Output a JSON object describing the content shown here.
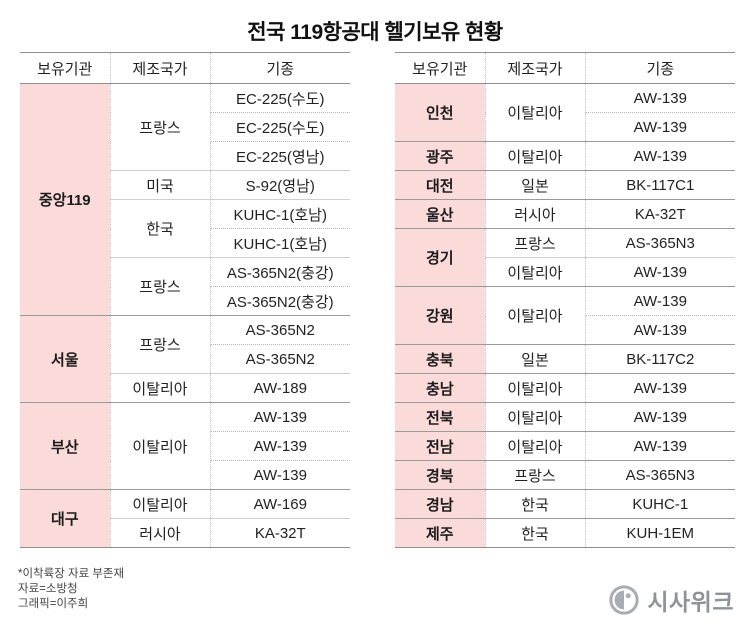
{
  "title": "전국 119항공대 헬기보유 현황",
  "chart_data": {
    "type": "table",
    "title": "전국 119항공대 헬기보유 현황",
    "headers": [
      "보유기관",
      "제조국가",
      "기종"
    ],
    "tables": [
      {
        "groups": [
          {
            "org": "중앙119",
            "countries": [
              {
                "name": "프랑스",
                "models": [
                  "EC-225(수도)",
                  "EC-225(수도)",
                  "EC-225(영남)"
                ]
              },
              {
                "name": "미국",
                "models": [
                  "S-92(영남)"
                ]
              },
              {
                "name": "한국",
                "models": [
                  "KUHC-1(호남)",
                  "KUHC-1(호남)"
                ]
              },
              {
                "name": "프랑스",
                "models": [
                  "AS-365N2(충강)",
                  "AS-365N2(충강)"
                ]
              }
            ]
          },
          {
            "org": "서울",
            "countries": [
              {
                "name": "프랑스",
                "models": [
                  "AS-365N2",
                  "AS-365N2"
                ]
              },
              {
                "name": "이탈리아",
                "models": [
                  "AW-189"
                ]
              }
            ]
          },
          {
            "org": "부산",
            "countries": [
              {
                "name": "이탈리아",
                "models": [
                  "AW-139",
                  "AW-139",
                  "AW-139"
                ]
              }
            ]
          },
          {
            "org": "대구",
            "countries": [
              {
                "name": "이탈리아",
                "models": [
                  "AW-169"
                ]
              },
              {
                "name": "러시아",
                "models": [
                  "KA-32T"
                ]
              }
            ]
          }
        ]
      },
      {
        "groups": [
          {
            "org": "인천",
            "countries": [
              {
                "name": "이탈리아",
                "models": [
                  "AW-139",
                  "AW-139"
                ]
              }
            ]
          },
          {
            "org": "광주",
            "countries": [
              {
                "name": "이탈리아",
                "models": [
                  "AW-139"
                ]
              }
            ]
          },
          {
            "org": "대전",
            "countries": [
              {
                "name": "일본",
                "models": [
                  "BK-117C1"
                ]
              }
            ]
          },
          {
            "org": "울산",
            "countries": [
              {
                "name": "러시아",
                "models": [
                  "KA-32T"
                ]
              }
            ]
          },
          {
            "org": "경기",
            "countries": [
              {
                "name": "프랑스",
                "models": [
                  "AS-365N3"
                ]
              },
              {
                "name": "이탈리아",
                "models": [
                  "AW-139"
                ]
              }
            ]
          },
          {
            "org": "강원",
            "countries": [
              {
                "name": "이탈리아",
                "models": [
                  "AW-139",
                  "AW-139"
                ]
              }
            ]
          },
          {
            "org": "충북",
            "countries": [
              {
                "name": "일본",
                "models": [
                  "BK-117C2"
                ]
              }
            ]
          },
          {
            "org": "충남",
            "countries": [
              {
                "name": "이탈리아",
                "models": [
                  "AW-139"
                ]
              }
            ]
          },
          {
            "org": "전북",
            "countries": [
              {
                "name": "이탈리아",
                "models": [
                  "AW-139"
                ]
              }
            ]
          },
          {
            "org": "전남",
            "countries": [
              {
                "name": "이탈리아",
                "models": [
                  "AW-139"
                ]
              }
            ]
          },
          {
            "org": "경북",
            "countries": [
              {
                "name": "프랑스",
                "models": [
                  "AS-365N3"
                ]
              }
            ]
          },
          {
            "org": "경남",
            "countries": [
              {
                "name": "한국",
                "models": [
                  "KUHC-1"
                ]
              }
            ]
          },
          {
            "org": "제주",
            "countries": [
              {
                "name": "한국",
                "models": [
                  "KUH-1EM"
                ]
              }
            ]
          }
        ]
      }
    ]
  },
  "footnotes": [
    "*이착륙장 자료 부존재",
    "자료=소방청",
    "그래픽=이주희"
  ],
  "logo": {
    "text": "시사위크"
  },
  "colors": {
    "org_bg": "#fbdada",
    "line_strong": "#8f8f8f",
    "line_dotted": "#b5b5b5",
    "text": "#1a1a1a"
  }
}
